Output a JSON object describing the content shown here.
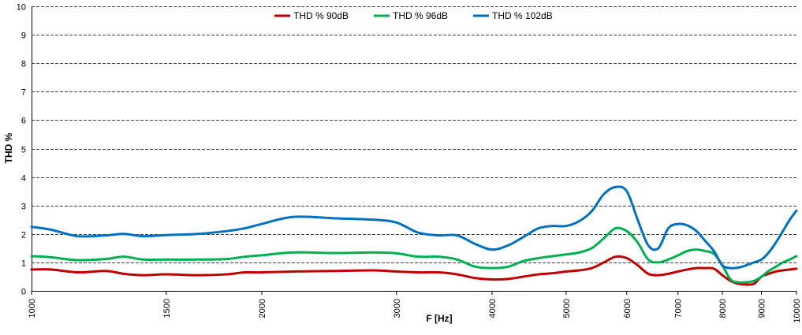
{
  "chart_data": {
    "type": "line",
    "xlabel": "F [Hz]",
    "ylabel": "THD %",
    "x_scale": "log",
    "xlim": [
      1000,
      10000
    ],
    "ylim": [
      0,
      10
    ],
    "x_ticks": [
      1000,
      1500,
      2000,
      3000,
      4000,
      5000,
      6000,
      7000,
      8000,
      9000,
      10000
    ],
    "x_tick_labels": [
      "1000",
      "1500",
      "2000",
      "3000",
      "4000",
      "5000",
      "6000",
      "7000",
      "8000",
      "9000",
      "10000"
    ],
    "y_ticks": [
      0,
      1,
      2,
      3,
      4,
      5,
      6,
      7,
      8,
      9,
      10
    ],
    "y_tick_labels": [
      "0",
      "1",
      "2",
      "3",
      "4",
      "5",
      "6",
      "7",
      "8",
      "9",
      "10"
    ],
    "grid": "horizontal dashed",
    "legend_position": "top-center",
    "series": [
      {
        "name": "THD % 90dB",
        "color": "#c00000",
        "x": [
          1000,
          1060,
          1150,
          1250,
          1320,
          1400,
          1500,
          1650,
          1800,
          1900,
          2000,
          2200,
          2500,
          2800,
          3000,
          3200,
          3400,
          3600,
          3800,
          4000,
          4200,
          4400,
          4600,
          4800,
          5000,
          5200,
          5400,
          5600,
          5800,
          6000,
          6200,
          6400,
          6600,
          6800,
          7000,
          7200,
          7400,
          7600,
          7800,
          8000,
          8200,
          8400,
          8600,
          8800,
          9000,
          9200,
          9400,
          9600,
          9800,
          10000
        ],
        "y": [
          0.75,
          0.75,
          0.65,
          0.7,
          0.6,
          0.55,
          0.58,
          0.55,
          0.58,
          0.65,
          0.65,
          0.68,
          0.7,
          0.72,
          0.68,
          0.65,
          0.65,
          0.58,
          0.45,
          0.4,
          0.42,
          0.5,
          0.58,
          0.62,
          0.68,
          0.72,
          0.8,
          1.0,
          1.2,
          1.15,
          0.9,
          0.6,
          0.55,
          0.6,
          0.68,
          0.75,
          0.8,
          0.8,
          0.78,
          0.55,
          0.35,
          0.25,
          0.22,
          0.25,
          0.5,
          0.6,
          0.68,
          0.72,
          0.75,
          0.78
        ]
      },
      {
        "name": "THD % 96dB",
        "color": "#00b050",
        "x": [
          1000,
          1060,
          1150,
          1250,
          1320,
          1400,
          1500,
          1650,
          1800,
          1900,
          2000,
          2200,
          2500,
          2800,
          3000,
          3200,
          3400,
          3600,
          3800,
          4000,
          4200,
          4400,
          4600,
          4800,
          5000,
          5200,
          5400,
          5600,
          5800,
          6000,
          6200,
          6400,
          6600,
          6800,
          7000,
          7200,
          7400,
          7600,
          7800,
          8000,
          8200,
          8400,
          8600,
          8800,
          9000,
          9200,
          9400,
          9600,
          9800,
          10000
        ],
        "y": [
          1.22,
          1.18,
          1.08,
          1.12,
          1.2,
          1.1,
          1.1,
          1.1,
          1.12,
          1.2,
          1.25,
          1.35,
          1.33,
          1.35,
          1.32,
          1.2,
          1.2,
          1.1,
          0.85,
          0.8,
          0.85,
          1.05,
          1.15,
          1.22,
          1.28,
          1.35,
          1.5,
          1.85,
          2.2,
          2.1,
          1.7,
          1.1,
          1.0,
          1.1,
          1.25,
          1.4,
          1.45,
          1.4,
          1.3,
          0.9,
          0.4,
          0.3,
          0.3,
          0.35,
          0.5,
          0.7,
          0.85,
          1.0,
          1.1,
          1.22
        ]
      },
      {
        "name": "THD % 102dB",
        "color": "#0070c0",
        "x": [
          1000,
          1060,
          1150,
          1250,
          1320,
          1400,
          1500,
          1650,
          1800,
          1900,
          2000,
          2200,
          2500,
          2800,
          3000,
          3200,
          3400,
          3600,
          3800,
          4000,
          4200,
          4400,
          4600,
          4800,
          5000,
          5200,
          5400,
          5600,
          5800,
          6000,
          6200,
          6400,
          6600,
          6800,
          7000,
          7200,
          7400,
          7600,
          7800,
          8000,
          8200,
          8400,
          8600,
          8800,
          9000,
          9200,
          9400,
          9600,
          9800,
          10000
        ],
        "y": [
          2.25,
          2.15,
          1.92,
          1.95,
          2.0,
          1.92,
          1.96,
          2.0,
          2.1,
          2.2,
          2.35,
          2.6,
          2.55,
          2.5,
          2.4,
          2.05,
          1.95,
          1.95,
          1.65,
          1.45,
          1.6,
          1.9,
          2.2,
          2.28,
          2.28,
          2.45,
          2.8,
          3.4,
          3.65,
          3.5,
          2.5,
          1.6,
          1.5,
          2.2,
          2.35,
          2.3,
          2.1,
          1.75,
          1.4,
          0.9,
          0.8,
          0.82,
          0.9,
          1.0,
          1.1,
          1.35,
          1.7,
          2.1,
          2.5,
          2.82
        ]
      }
    ]
  }
}
